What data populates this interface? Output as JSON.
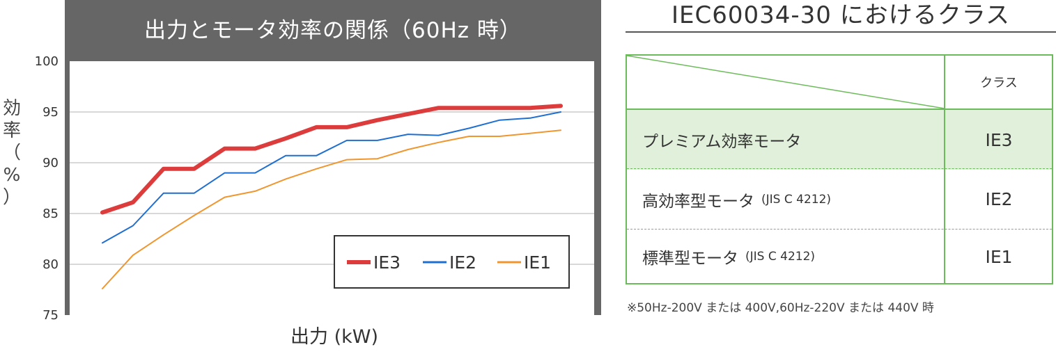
{
  "chart_data": {
    "type": "line",
    "title": "出力とモータ効率の関係（60Hz 時）",
    "xlabel": "出力 (kW)",
    "ylabel": "効率（%）",
    "ylim": [
      75,
      100
    ],
    "yticks": [
      100,
      95,
      90,
      85,
      80,
      75
    ],
    "grid": true,
    "legend_placement": "bottom-right",
    "x": [
      1,
      2,
      3,
      4,
      5,
      6,
      7,
      8,
      9,
      10,
      11,
      12,
      13,
      14,
      15,
      16
    ],
    "series": [
      {
        "name": "IE3",
        "color": "#dd3c3c",
        "values": [
          85.1,
          86.1,
          89.4,
          89.4,
          91.4,
          91.4,
          92.4,
          93.5,
          93.5,
          94.2,
          94.8,
          95.4,
          95.4,
          95.4,
          95.4,
          95.6
        ]
      },
      {
        "name": "IE2",
        "color": "#1f6fd1",
        "values": [
          82.1,
          83.8,
          87.0,
          87.0,
          89.0,
          89.0,
          90.7,
          90.7,
          92.2,
          92.2,
          92.8,
          92.7,
          93.4,
          94.2,
          94.4,
          95.0
        ]
      },
      {
        "name": "IE1",
        "color": "#f0962f",
        "values": [
          77.6,
          80.9,
          82.9,
          84.8,
          86.6,
          87.2,
          88.4,
          89.4,
          90.3,
          90.4,
          91.3,
          92.0,
          92.6,
          92.6,
          92.9,
          93.2
        ]
      }
    ]
  },
  "right": {
    "title": "IEC60034-30 におけるクラス",
    "header_class": "クラス",
    "rows": [
      {
        "name": "プレミアム効率モータ",
        "sub": "",
        "class": "IE3"
      },
      {
        "name": "高効率型モータ",
        "sub": "(JIS C 4212)",
        "class": "IE2"
      },
      {
        "name": "標準型モータ",
        "sub": "(JIS C 4212)",
        "class": "IE1"
      }
    ],
    "footnote": "※50Hz-200V または 400V,60Hz-220V または 440V 時"
  },
  "colors": {
    "table_border": "#6cbb5a",
    "premium_row_bg": "#e0f0da",
    "chart_frame": "#666666"
  }
}
